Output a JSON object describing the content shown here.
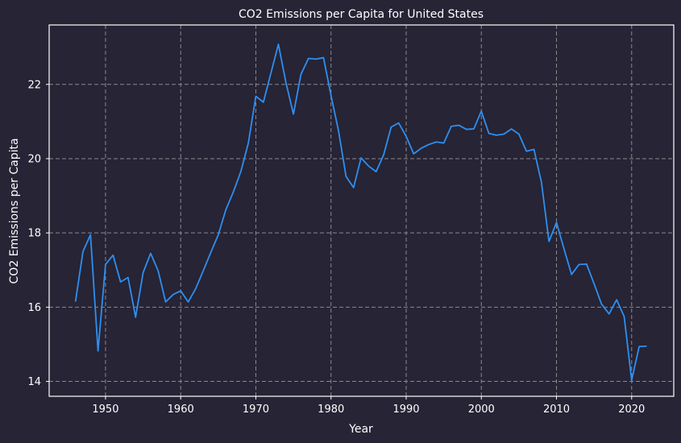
{
  "chart_data": {
    "type": "line",
    "title": "CO2 Emissions per Capita for United States",
    "xlabel": "Year",
    "ylabel": "CO2 Emissions per Capita",
    "xlim": [
      1942.5,
      2025.6
    ],
    "ylim": [
      13.6,
      23.6
    ],
    "xticks": [
      1950,
      1960,
      1970,
      1980,
      1990,
      2000,
      2010,
      2020
    ],
    "yticks": [
      14,
      16,
      18,
      20,
      22
    ],
    "grid": true,
    "colors": {
      "background": "#262435",
      "line": "#2f8ff0",
      "grid": "#8a8a8a",
      "text": "#ffffff"
    },
    "series": [
      {
        "x": [
          1946,
          1947,
          1948,
          1949,
          1950,
          1951,
          1952,
          1953,
          1954,
          1955,
          1956,
          1957,
          1958,
          1959,
          1960,
          1961,
          1962,
          1963,
          1964,
          1965,
          1966,
          1967,
          1968,
          1969,
          1970,
          1971,
          1972,
          1973,
          1974,
          1975,
          1976,
          1977,
          1978,
          1979,
          1980,
          1981,
          1982,
          1983,
          1984,
          1985,
          1986,
          1987,
          1988,
          1989,
          1990,
          1991,
          1992,
          1993,
          1994,
          1995,
          1996,
          1997,
          1998,
          1999,
          2000,
          2001,
          2002,
          2003,
          2004,
          2005,
          2006,
          2007,
          2008,
          2009,
          2010,
          2011,
          2012,
          2013,
          2014,
          2015,
          2016,
          2017,
          2018,
          2019,
          2020,
          2021,
          2022
        ],
        "y": [
          16.15,
          17.5,
          17.95,
          14.82,
          17.15,
          17.4,
          16.68,
          16.8,
          15.73,
          16.93,
          17.45,
          16.98,
          16.14,
          16.34,
          16.44,
          16.14,
          16.5,
          16.98,
          17.47,
          17.95,
          18.62,
          19.1,
          19.65,
          20.42,
          21.68,
          21.52,
          22.3,
          23.08,
          22.05,
          21.2,
          22.27,
          22.7,
          22.68,
          22.72,
          21.7,
          20.75,
          19.52,
          19.22,
          20.02,
          19.8,
          19.65,
          20.1,
          20.85,
          20.96,
          20.6,
          20.13,
          20.28,
          20.38,
          20.45,
          20.42,
          20.87,
          20.9,
          20.79,
          20.8,
          21.28,
          20.68,
          20.63,
          20.66,
          20.8,
          20.66,
          20.2,
          20.25,
          19.36,
          17.77,
          18.28,
          17.57,
          16.88,
          17.15,
          17.16,
          16.63,
          16.08,
          15.82,
          16.2,
          15.75,
          14.03,
          14.94,
          14.95
        ]
      }
    ]
  }
}
